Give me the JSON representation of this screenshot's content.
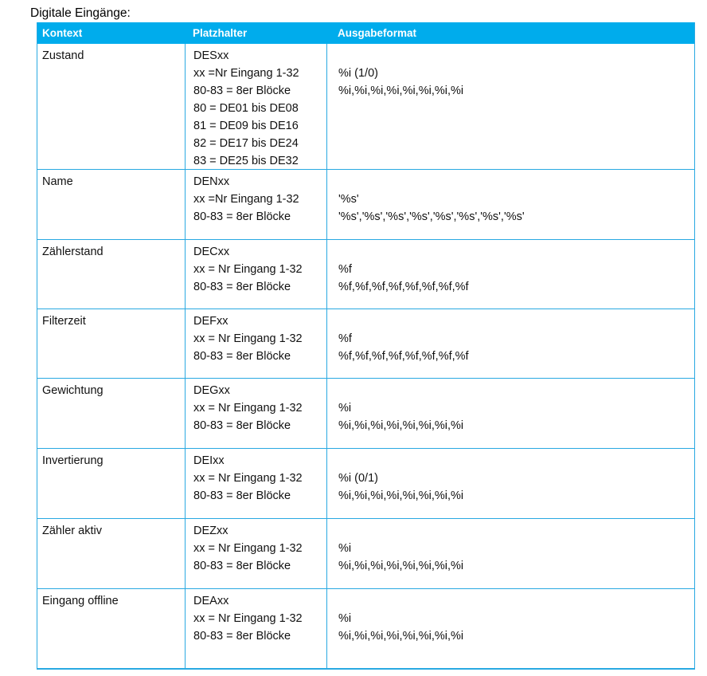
{
  "page": {
    "title": "Digitale Eingänge:"
  },
  "table": {
    "colors": {
      "header_bg": "#00ACEC",
      "border": "#29A9E2",
      "header_text": "#FFFFFF",
      "body_text": "#111111"
    },
    "headers": [
      "Kontext",
      "Platzhalter",
      "Ausgabeformat"
    ],
    "rows": [
      {
        "kontext": "Zustand",
        "platzhalter": [
          "DESxx",
          "xx =Nr Eingang 1-32",
          "80-83 = 8er Blöcke",
          "80 = DE01 bis DE08",
          "81 = DE09 bis DE16",
          "82 = DE17 bis DE24",
          "83 = DE25 bis DE32"
        ],
        "ausgabeformat": [
          "",
          "%i (1/0)",
          "%i,%i,%i,%i,%i,%i,%i,%i"
        ]
      },
      {
        "kontext": "Name",
        "platzhalter": [
          "DENxx",
          "xx =Nr Eingang 1-32",
          "80-83 = 8er Blöcke"
        ],
        "ausgabeformat": [
          "",
          "'%s'",
          "'%s','%s','%s','%s','%s','%s','%s','%s'"
        ]
      },
      {
        "kontext": "Zählerstand",
        "platzhalter": [
          "DECxx",
          "xx = Nr Eingang 1-32",
          "80-83 = 8er Blöcke"
        ],
        "ausgabeformat": [
          "",
          "%f",
          "%f,%f,%f,%f,%f,%f,%f,%f"
        ]
      },
      {
        "kontext": "Filterzeit",
        "platzhalter": [
          "DEFxx",
          "xx = Nr Eingang 1-32",
          "80-83 = 8er Blöcke"
        ],
        "ausgabeformat": [
          "",
          "%f",
          "%f,%f,%f,%f,%f,%f,%f,%f"
        ]
      },
      {
        "kontext": "Gewichtung",
        "platzhalter": [
          "DEGxx",
          "xx = Nr Eingang 1-32",
          "80-83 = 8er Blöcke"
        ],
        "ausgabeformat": [
          "",
          "%i",
          "%i,%i,%i,%i,%i,%i,%i,%i"
        ]
      },
      {
        "kontext": "Invertierung",
        "platzhalter": [
          "DEIxx",
          "xx = Nr Eingang 1-32",
          "80-83 = 8er Blöcke"
        ],
        "ausgabeformat": [
          "",
          "%i (0/1)",
          "%i,%i,%i,%i,%i,%i,%i,%i"
        ]
      },
      {
        "kontext": "Zähler aktiv",
        "platzhalter": [
          "DEZxx",
          "xx = Nr Eingang 1-32",
          "80-83 = 8er Blöcke"
        ],
        "ausgabeformat": [
          "",
          "%i",
          "%i,%i,%i,%i,%i,%i,%i,%i"
        ]
      },
      {
        "kontext": "Eingang offline",
        "platzhalter": [
          "DEAxx",
          "xx = Nr Eingang 1-32",
          "80-83 = 8er Blöcke"
        ],
        "ausgabeformat": [
          "",
          "%i",
          "%i,%i,%i,%i,%i,%i,%i,%i"
        ]
      }
    ]
  }
}
